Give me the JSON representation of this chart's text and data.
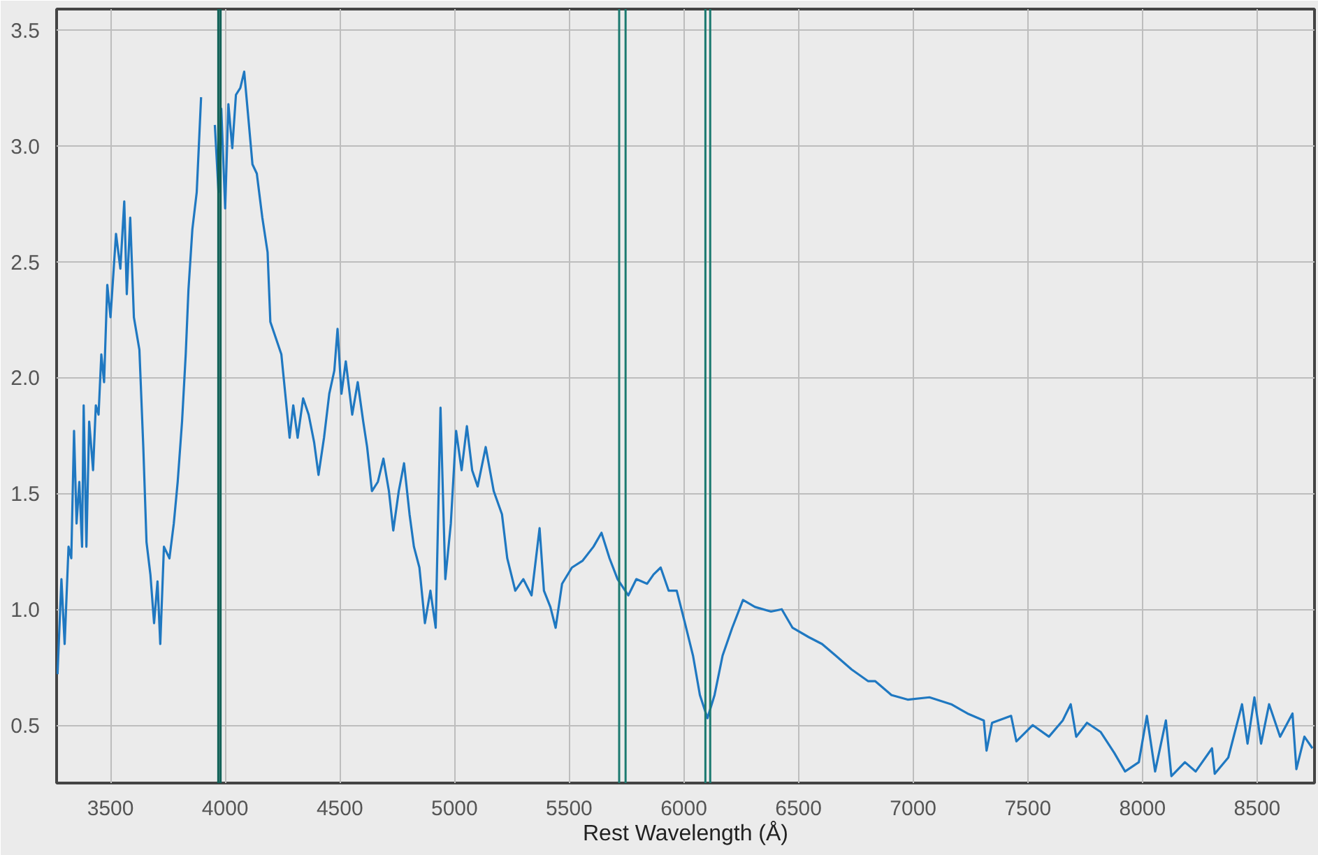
{
  "chart_data": {
    "type": "line",
    "xlabel": "Rest Wavelength (Å)",
    "xlim": [
      3265,
      8750
    ],
    "ylim": [
      0.25,
      3.59
    ],
    "xticks": [
      3500,
      4000,
      4500,
      5000,
      5500,
      6000,
      6500,
      7000,
      7500,
      8000,
      8500
    ],
    "yticks": [
      {
        "value": 0.5,
        "label": "0.5"
      },
      {
        "value": 1,
        "label": "1.0"
      },
      {
        "value": 1.5,
        "label": "1.5"
      },
      {
        "value": 2,
        "label": "2.0"
      },
      {
        "value": 2.5,
        "label": "2.5"
      },
      {
        "value": 3,
        "label": "3.0"
      },
      {
        "value": 3.5,
        "label": "3.5"
      }
    ],
    "grid": true,
    "line_style": "solid",
    "marker": "none",
    "series": [
      {
        "color": "#1f78c1",
        "x": [
          3269,
          3286,
          3300,
          3317,
          3329,
          3341,
          3352,
          3364,
          3376,
          3383,
          3395,
          3407,
          3424,
          3436,
          3448,
          3460,
          3472,
          3486,
          3500,
          3524,
          3543,
          3560,
          3571,
          3586,
          3602,
          3626,
          3643,
          3657,
          3674,
          3690,
          3705,
          3717,
          3733,
          3757,
          3776,
          3793,
          3812,
          3828,
          3840,
          3857,
          3876,
          3895,
          3914,
          3936,
          3955,
          3971,
          3983,
          4000,
          4014,
          4031,
          4047,
          4066,
          4083,
          4102,
          4119,
          4138,
          4162,
          4185,
          4197,
          4221,
          4245,
          4262,
          4281,
          4297,
          4316,
          4340,
          4364,
          4388,
          4407,
          4431,
          4454,
          4476,
          4490,
          4507,
          4526,
          4554,
          4578,
          4602,
          4619,
          4640,
          4666,
          4690,
          4714,
          4733,
          4757,
          4780,
          4804,
          4823,
          4847,
          4871,
          4895,
          4918,
          4939,
          4960,
          4984,
          5007,
          5031,
          5054,
          5077,
          5101,
          5136,
          5171,
          5207,
          5230,
          5265,
          5300,
          5336,
          5371,
          5390,
          5418,
          5441,
          5469,
          5512,
          5559,
          5606,
          5641,
          5676,
          5711,
          5758,
          5793,
          5840,
          5868,
          5899,
          5934,
          5969,
          6005,
          6040,
          6070,
          6103,
          6134,
          6169,
          6211,
          6258,
          6310,
          6380,
          6427,
          6474,
          6544,
          6603,
          6662,
          6732,
          6803,
          6834,
          6905,
          6976,
          7071,
          7166,
          7237,
          7308,
          7320,
          7344,
          7427,
          7450,
          7521,
          7592,
          7652,
          7687,
          7711,
          7758,
          7818,
          7877,
          7924,
          7984,
          8019,
          8055,
          8102,
          8126,
          8185,
          8232,
          8303,
          8315,
          8374,
          8434,
          8458,
          8488,
          8517,
          8552,
          8600,
          8654,
          8671,
          8706,
          8741
        ],
        "values": [
          0.72,
          1.13,
          0.85,
          1.27,
          1.22,
          1.77,
          1.37,
          1.55,
          1.27,
          1.88,
          1.27,
          1.81,
          1.6,
          1.88,
          1.84,
          2.1,
          1.98,
          2.4,
          2.26,
          2.62,
          2.47,
          2.76,
          2.36,
          2.69,
          2.26,
          2.12,
          1.7,
          1.29,
          1.15,
          0.94,
          1.12,
          0.85,
          1.27,
          1.22,
          1.37,
          1.55,
          1.81,
          2.1,
          2.38,
          2.64,
          2.8,
          3.21,
          null,
          null,
          3.09,
          2.8,
          3.16,
          2.73,
          3.18,
          2.99,
          3.22,
          3.25,
          3.32,
          3.11,
          2.92,
          2.88,
          2.69,
          2.54,
          2.24,
          2.17,
          2.1,
          1.93,
          1.74,
          1.88,
          1.74,
          1.91,
          1.84,
          1.72,
          1.58,
          1.74,
          1.93,
          2.03,
          2.21,
          1.93,
          2.07,
          1.84,
          1.98,
          1.81,
          1.7,
          1.51,
          1.55,
          1.65,
          1.51,
          1.34,
          1.51,
          1.63,
          1.41,
          1.27,
          1.18,
          0.94,
          1.08,
          0.92,
          1.87,
          1.13,
          1.37,
          1.77,
          1.6,
          1.79,
          1.6,
          1.53,
          1.7,
          1.51,
          1.41,
          1.22,
          1.08,
          1.13,
          1.06,
          1.35,
          1.08,
          1.01,
          0.92,
          1.11,
          1.18,
          1.21,
          1.27,
          1.33,
          1.22,
          1.13,
          1.06,
          1.13,
          1.11,
          1.15,
          1.18,
          1.08,
          1.08,
          0.94,
          0.8,
          0.63,
          0.53,
          0.63,
          0.8,
          0.92,
          1.04,
          1.01,
          0.99,
          1.0,
          0.92,
          0.88,
          0.85,
          0.8,
          0.74,
          0.69,
          0.69,
          0.63,
          0.61,
          0.62,
          0.59,
          0.55,
          0.52,
          0.39,
          0.51,
          0.54,
          0.43,
          0.5,
          0.45,
          0.52,
          0.59,
          0.45,
          0.51,
          0.47,
          0.38,
          0.3,
          0.34,
          0.54,
          0.3,
          0.52,
          0.28,
          0.34,
          0.3,
          0.4,
          0.29,
          0.36,
          0.59,
          0.42,
          0.62,
          0.42,
          0.59,
          0.45,
          0.55,
          0.31,
          0.45,
          0.4
        ]
      }
    ],
    "ref_lines": [
      {
        "axis": "x",
        "value": 3970,
        "color": "#0e5f55"
      },
      {
        "axis": "x",
        "value": 3980,
        "color": "#0e5f55"
      },
      {
        "axis": "x",
        "value": 5718,
        "color": "#1c7a70"
      },
      {
        "axis": "x",
        "value": 5746,
        "color": "#1c7a70"
      },
      {
        "axis": "x",
        "value": 6094,
        "color": "#1c7a70"
      },
      {
        "axis": "x",
        "value": 6115,
        "color": "#1c7a70"
      }
    ]
  }
}
